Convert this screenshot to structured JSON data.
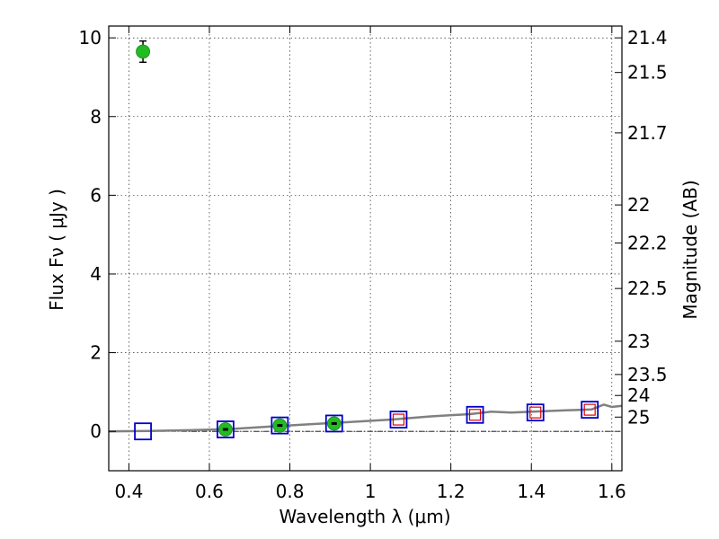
{
  "chart_data": {
    "type": "scatter",
    "xlabel": "Wavelength  λ (μm)",
    "ylabel": "Flux  Fν  ( μJy )",
    "y2label": "Magnitude (AB)",
    "xlim": [
      0.35,
      1.625
    ],
    "ylim": [
      -1,
      10.3
    ],
    "grid": true,
    "x_ticks": [
      {
        "value": 0.4,
        "label": "0.4"
      },
      {
        "value": 0.6,
        "label": "0.6"
      },
      {
        "value": 0.8,
        "label": "0.8"
      },
      {
        "value": 1.0,
        "label": "1"
      },
      {
        "value": 1.2,
        "label": "1.2"
      },
      {
        "value": 1.4,
        "label": "1.4"
      },
      {
        "value": 1.6,
        "label": "1.6"
      }
    ],
    "y_ticks": [
      {
        "value": 0,
        "label": "0"
      },
      {
        "value": 2,
        "label": "2"
      },
      {
        "value": 4,
        "label": "4"
      },
      {
        "value": 6,
        "label": "6"
      },
      {
        "value": 8,
        "label": "8"
      },
      {
        "value": 10,
        "label": "10"
      }
    ],
    "magnitude_ticks": [
      {
        "mag": 21.4,
        "label": "21.4"
      },
      {
        "mag": 21.5,
        "label": "21.5"
      },
      {
        "mag": 21.7,
        "label": "21.7"
      },
      {
        "mag": 22.0,
        "label": "22"
      },
      {
        "mag": 22.2,
        "label": "22.2"
      },
      {
        "mag": 22.5,
        "label": "22.5"
      },
      {
        "mag": 23.0,
        "label": "23"
      },
      {
        "mag": 23.5,
        "label": "23.5"
      },
      {
        "mag": 24.0,
        "label": "24"
      },
      {
        "mag": 25.0,
        "label": "25"
      }
    ],
    "series": [
      {
        "kind": "observed",
        "marker": "circle",
        "color": "#22bb22",
        "points": [
          {
            "x": 0.435,
            "y": 9.65,
            "err": 0.27
          },
          {
            "x": 0.64,
            "y": 0.05,
            "err": 0.04
          },
          {
            "x": 0.775,
            "y": 0.15,
            "err": 0.04
          },
          {
            "x": 0.91,
            "y": 0.2,
            "err": 0.04
          }
        ]
      },
      {
        "kind": "model",
        "marker": "square",
        "color": "#0000cc",
        "points": [
          {
            "x": 0.435,
            "y": 0.0
          },
          {
            "x": 0.64,
            "y": 0.05
          },
          {
            "x": 0.775,
            "y": 0.15
          },
          {
            "x": 0.91,
            "y": 0.2
          },
          {
            "x": 1.07,
            "y": 0.3
          },
          {
            "x": 1.26,
            "y": 0.42
          },
          {
            "x": 1.41,
            "y": 0.48
          },
          {
            "x": 1.545,
            "y": 0.55
          }
        ]
      },
      {
        "kind": "upper-limit",
        "marker": "square",
        "color": "#dd0000",
        "points": [
          {
            "x": 1.07,
            "y": 0.3
          },
          {
            "x": 1.26,
            "y": 0.42
          },
          {
            "x": 1.41,
            "y": 0.48
          },
          {
            "x": 1.545,
            "y": 0.55
          }
        ]
      },
      {
        "kind": "template-spectrum",
        "marker": "line",
        "color": "#808080",
        "x": [
          0.35,
          0.45,
          0.55,
          0.65,
          0.75,
          0.85,
          0.95,
          1.05,
          1.15,
          1.25,
          1.3,
          1.35,
          1.45,
          1.55,
          1.58,
          1.6,
          1.625
        ],
        "values": [
          0.0,
          0.01,
          0.03,
          0.06,
          0.12,
          0.18,
          0.24,
          0.3,
          0.38,
          0.44,
          0.5,
          0.48,
          0.52,
          0.56,
          0.68,
          0.62,
          0.65
        ]
      }
    ]
  }
}
